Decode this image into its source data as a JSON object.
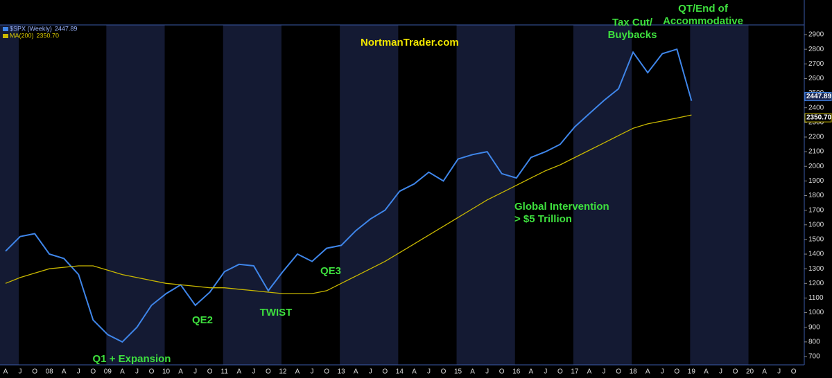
{
  "chart_data": {
    "type": "line",
    "title": "NortmanTrader.com",
    "categories": [
      "A",
      "J",
      "O",
      "08",
      "A",
      "J",
      "O",
      "09",
      "A",
      "J",
      "O",
      "10",
      "A",
      "J",
      "O",
      "11",
      "A",
      "J",
      "O",
      "12",
      "A",
      "J",
      "O",
      "13",
      "A",
      "J",
      "O",
      "14",
      "A",
      "J",
      "O",
      "15",
      "A",
      "J",
      "O",
      "16",
      "A",
      "J",
      "O",
      "17",
      "A",
      "J",
      "O",
      "18",
      "A",
      "J",
      "O",
      "19",
      "A",
      "J",
      "O",
      "20",
      "A",
      "J",
      "O"
    ],
    "series": [
      {
        "name": "$SPX (Weekly)",
        "color": "#3f86ea",
        "values": [
          1420,
          1520,
          1540,
          1400,
          1370,
          1260,
          950,
          850,
          800,
          900,
          1050,
          1130,
          1190,
          1050,
          1140,
          1280,
          1330,
          1320,
          1150,
          1280,
          1400,
          1350,
          1440,
          1460,
          1560,
          1640,
          1700,
          1830,
          1880,
          1960,
          1900,
          2050,
          2080,
          2100,
          1950,
          1920,
          2060,
          2100,
          2150,
          2270,
          2360,
          2450,
          2530,
          2780,
          2640,
          2770,
          2800,
          2447.89,
          null,
          null,
          null,
          null,
          null,
          null,
          null
        ]
      },
      {
        "name": "MA(200)",
        "color": "#c9b800",
        "values": [
          1200,
          1240,
          1270,
          1300,
          1310,
          1320,
          1320,
          1290,
          1260,
          1240,
          1220,
          1200,
          1190,
          1180,
          1170,
          1170,
          1160,
          1150,
          1140,
          1130,
          1130,
          1130,
          1150,
          1200,
          1250,
          1300,
          1350,
          1410,
          1470,
          1530,
          1590,
          1650,
          1710,
          1770,
          1820,
          1870,
          1920,
          1970,
          2010,
          2060,
          2110,
          2160,
          2210,
          2260,
          2290,
          2310,
          2330,
          2350.7,
          null,
          null,
          null,
          null,
          null,
          null,
          null
        ],
        "value_labels": [
          null,
          null,
          null,
          null,
          null,
          null,
          null,
          null,
          null,
          null,
          null,
          null,
          null,
          null,
          null,
          null,
          null,
          null,
          null,
          null,
          null,
          null,
          null,
          null,
          null,
          null,
          null,
          null,
          null,
          null,
          null,
          null,
          null,
          null,
          null,
          null,
          null,
          null,
          null,
          null,
          null,
          null,
          null,
          null,
          null,
          null,
          null,
          "2350.70",
          null,
          null,
          null,
          null,
          null,
          null,
          null
        ]
      }
    ],
    "ylim": [
      650,
      3000
    ],
    "yticks": [
      700,
      800,
      900,
      1000,
      1100,
      1200,
      1300,
      1400,
      1500,
      1600,
      1700,
      1800,
      1900,
      2000,
      2100,
      2200,
      2300,
      2400,
      2500,
      2600,
      2700,
      2800,
      2900
    ],
    "grid": false,
    "annotations": [
      {
        "text": [
          "Q1 + Expansion"
        ],
        "at": 8
      },
      {
        "text": [
          "QE2"
        ],
        "at": 13
      },
      {
        "text": [
          "TWIST"
        ],
        "at": 18
      },
      {
        "text": [
          "QE3"
        ],
        "at": 22
      },
      {
        "text": [
          "Global Intervention",
          "> $5 Trillion"
        ],
        "at": 35
      },
      {
        "text": [
          "Tax Cut/",
          "Buybacks"
        ],
        "at": 43
      },
      {
        "text": [
          "QT/End of",
          "Accommodative"
        ],
        "at": 46
      }
    ]
  }
}
